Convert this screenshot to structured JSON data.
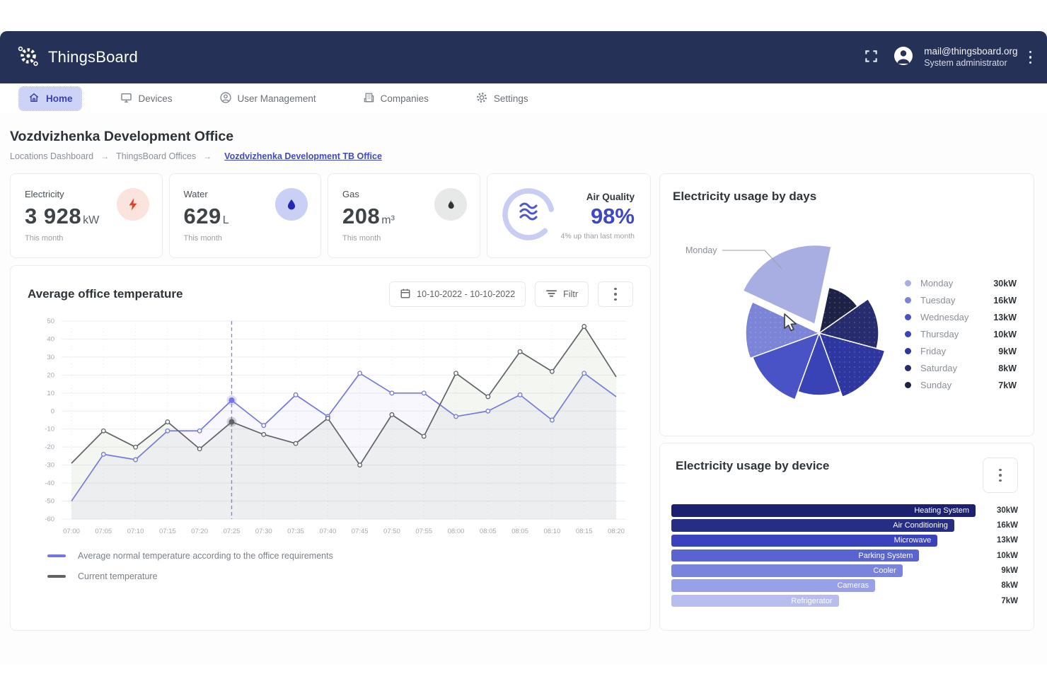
{
  "header": {
    "brand": "ThingsBoard",
    "user_email": "mail@thingsboard.org",
    "user_role": "System administrator"
  },
  "nav": {
    "tabs": [
      {
        "label": "Home",
        "icon": "home",
        "active": true
      },
      {
        "label": "Devices",
        "icon": "monitor",
        "active": false
      },
      {
        "label": "User Management",
        "icon": "person",
        "active": false
      },
      {
        "label": "Companies",
        "icon": "building",
        "active": false
      },
      {
        "label": "Settings",
        "icon": "gear",
        "active": false
      }
    ]
  },
  "page": {
    "title": "Vozdvizhenka Development Office",
    "breadcrumb": [
      {
        "label": "Locations Dashboard",
        "current": false
      },
      {
        "label": "ThingsBoard Offices",
        "current": false
      },
      {
        "label": "Vozdvizhenka Development TB Office",
        "current": true
      }
    ]
  },
  "stat_cards": [
    {
      "label": "Electricity",
      "value": "3 928",
      "unit": "kW",
      "caption": "This month",
      "icon": "bolt-icon",
      "icon_color": "#e0432d",
      "icon_bg": "#fbe3de"
    },
    {
      "label": "Water",
      "value": "629",
      "unit": "L",
      "caption": "This month",
      "icon": "drop-icon",
      "icon_color": "#2328b2",
      "icon_bg": "#c9cff5"
    },
    {
      "label": "Gas",
      "value": "208",
      "unit": "m³",
      "caption": "This month",
      "icon": "flame-icon",
      "icon_color": "#2f3336",
      "icon_bg": "#e7e9e8"
    }
  ],
  "air_quality": {
    "label": "Air Quality",
    "value": "98%",
    "caption": "4% up than last month",
    "accent": "#3d47c8",
    "ring_color": "#c9cdf3",
    "waves_color": "#4d55d2"
  },
  "chart_data": [
    {
      "id": "temperature",
      "type": "line",
      "title": "Average office temperature",
      "date_range": "10-10-2022 - 10-10-2022",
      "filter_label": "Filtr",
      "x": [
        "07:00",
        "07:05",
        "07:10",
        "07:15",
        "07:20",
        "07:25",
        "07:30",
        "07:35",
        "07:40",
        "07:45",
        "07:50",
        "07:55",
        "08:00",
        "08:05",
        "08:05",
        "08:10",
        "08:15",
        "08:20"
      ],
      "ylim": [
        -60,
        50
      ],
      "y_ticks": [
        50,
        40,
        30,
        20,
        10,
        0,
        -10,
        -20,
        -30,
        -40,
        -50,
        -60
      ],
      "grid": true,
      "highlight_index": 5,
      "legend_position": "bottom",
      "series": [
        {
          "name": "Average normal temperature according to the office requirements",
          "color": "#7377e0",
          "fill": "rgba(115,119,224,0.06)",
          "values": [
            -50,
            -24,
            -27,
            -11,
            -11,
            6,
            -8,
            9,
            -3,
            21,
            10,
            10,
            -3,
            0,
            9,
            -5,
            21,
            8
          ]
        },
        {
          "name": "Current temperature",
          "color": "#5f6368",
          "fill": "rgba(150,165,125,0.10)",
          "values": [
            -29,
            -11,
            -20,
            -6,
            -21,
            -6,
            -13,
            -18,
            -4,
            -30,
            -2,
            -14,
            21,
            8,
            33,
            22,
            47,
            19
          ]
        }
      ]
    },
    {
      "id": "usage_by_days",
      "type": "pie",
      "title": "Electricity usage by days",
      "unit": "kW",
      "callout_label": "Monday",
      "legend_position": "right",
      "slices": [
        {
          "label": "Monday",
          "value": 30,
          "color": "#a9aee2",
          "start": 295,
          "end": 372,
          "radius": 112,
          "explode": 14,
          "dotted": false
        },
        {
          "label": "Tuesday",
          "value": 16,
          "color": "#7b84d6",
          "start": 250,
          "end": 295,
          "radius": 104,
          "explode": 0,
          "dotted": true
        },
        {
          "label": "Wednesday",
          "value": 13,
          "color": "#4a53c6",
          "start": 200,
          "end": 250,
          "radius": 100,
          "explode": 0,
          "dotted": false
        },
        {
          "label": "Thursday",
          "value": 10,
          "color": "#3a43b5",
          "start": 160,
          "end": 200,
          "radius": 88,
          "explode": 0,
          "dotted": false
        },
        {
          "label": "Friday",
          "value": 9,
          "color": "#2e36a0",
          "start": 105,
          "end": 160,
          "radius": 96,
          "explode": 0,
          "dotted": true
        },
        {
          "label": "Saturday",
          "value": 8,
          "color": "#262c6e",
          "start": 55,
          "end": 105,
          "radius": 84,
          "explode": 0,
          "dotted": true
        },
        {
          "label": "Sunday",
          "value": 7,
          "color": "#1c2145",
          "start": 12,
          "end": 55,
          "radius": 66,
          "explode": 0,
          "dotted": true
        }
      ]
    },
    {
      "id": "usage_by_device",
      "type": "bar",
      "title": "Electricity usage by device",
      "unit": "kW",
      "orientation": "horizontal",
      "categories": [
        "Heating System",
        "Air Conditioning",
        "Microwave",
        "Parking System",
        "Cooler",
        "Cameras",
        "Refrigerator"
      ],
      "values": [
        30,
        16,
        13,
        10,
        9,
        8,
        7
      ],
      "bar_colors": [
        "#1b2170",
        "#262d85",
        "#3a43bd",
        "#5a64d0",
        "#7b84dd",
        "#98a0e8",
        "#b7bdee"
      ],
      "bar_width_pct": [
        100,
        93,
        87.5,
        81.5,
        76,
        67,
        55
      ],
      "dotted": [
        false,
        true,
        false,
        true,
        false,
        true,
        false
      ]
    }
  ]
}
